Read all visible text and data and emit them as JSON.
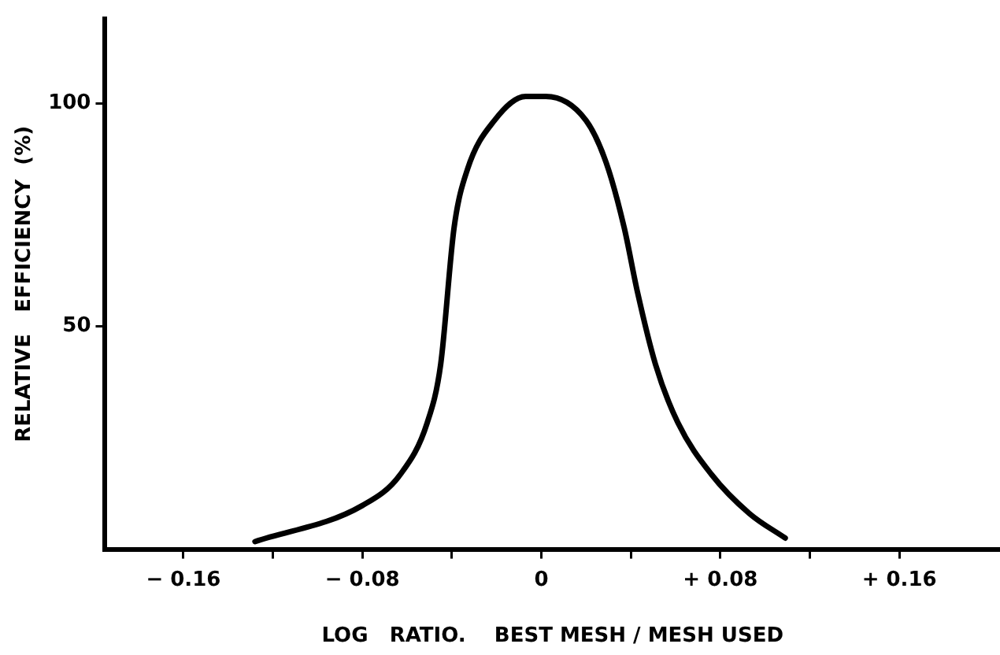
{
  "chart_data": {
    "type": "line",
    "xlabel": "LOG   RATIO.    BEST MESH / MESH USED",
    "ylabel": "RELATIVE   EFFICIENCY  (%)",
    "x": [
      -0.128,
      -0.08,
      -0.063,
      -0.051,
      -0.045,
      -0.039,
      -0.033,
      -0.021,
      -0.007,
      0.002,
      0.02,
      0.029,
      0.037,
      0.043,
      0.051,
      0.061,
      0.076,
      0.093,
      0.109
    ],
    "series": [
      {
        "color": "#000000",
        "values": [
          1.7,
          9.8,
          16.8,
          28.4,
          41.5,
          72.2,
          85.3,
          96.2,
          101.6,
          101.6,
          96.2,
          86.7,
          72.2,
          57.6,
          41.5,
          28.4,
          16.8,
          8,
          2.5
        ]
      }
    ],
    "xlim": [
      -0.195,
      0.205
    ],
    "xticks": [
      {
        "value": -0.16,
        "label": "− 0.16"
      },
      {
        "value": -0.12,
        "label": null
      },
      {
        "value": -0.08,
        "label": "− 0.08"
      },
      {
        "value": -0.04,
        "label": null
      },
      0,
      {
        "value": 0.04,
        "label": null
      },
      {
        "value": 0.08,
        "label": "+ 0.08"
      },
      {
        "value": 0.12,
        "label": null
      },
      {
        "value": 0.16,
        "label": "+ 0.16"
      }
    ],
    "ylim": [
      0,
      119
    ],
    "yticks": [
      50,
      100
    ],
    "grid": false,
    "legend": false,
    "marker": "none",
    "line_style": "solid"
  }
}
